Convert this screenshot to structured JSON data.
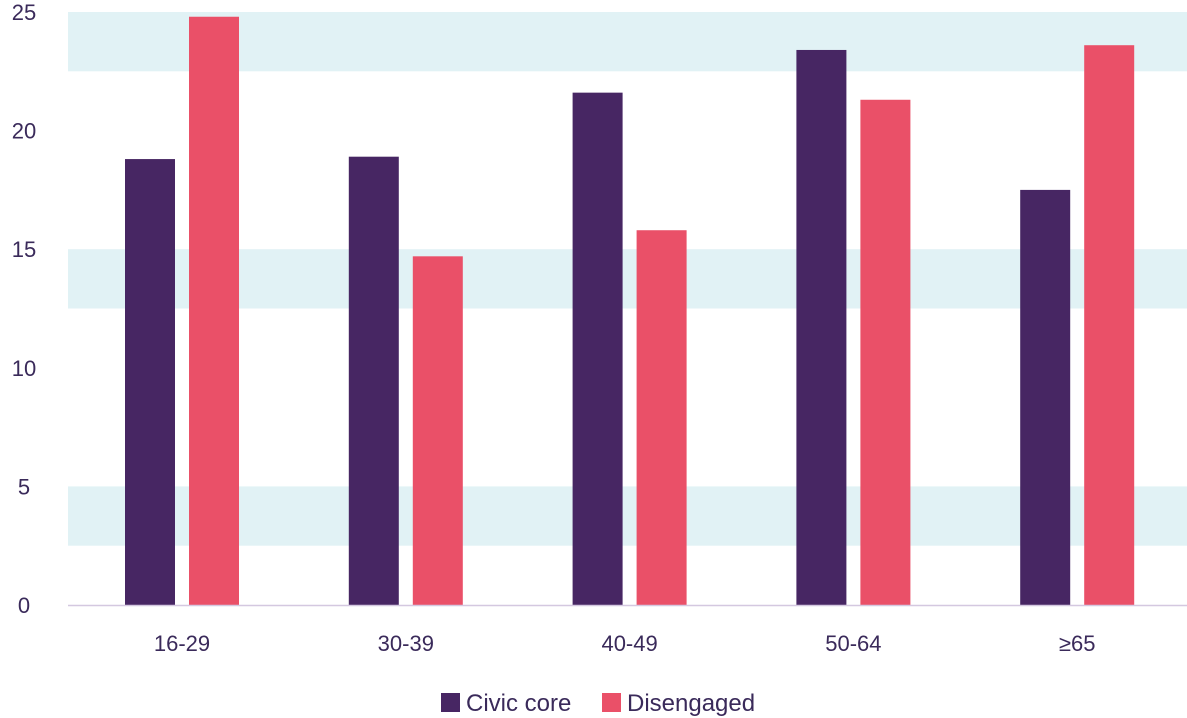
{
  "chart_data": {
    "type": "bar",
    "title": "",
    "xlabel": "",
    "ylabel": "",
    "categories": [
      "16-29",
      "30-39",
      "40-49",
      "50-64",
      "≥65"
    ],
    "series": [
      {
        "name": "Civic core",
        "color": "#472663",
        "values": [
          18.8,
          18.9,
          21.6,
          23.4,
          17.5
        ]
      },
      {
        "name": "Disengaged",
        "color": "#EA5068",
        "values": [
          24.8,
          14.7,
          15.8,
          21.3,
          23.6
        ]
      }
    ],
    "ylim": [
      0,
      25
    ],
    "yticks": [
      0,
      5,
      10,
      15,
      20,
      25
    ],
    "band_color": "#E1F2F5",
    "axis_color": "#D4C8E0",
    "legend_position": "bottom",
    "grid": "alternating horizontal bands"
  }
}
